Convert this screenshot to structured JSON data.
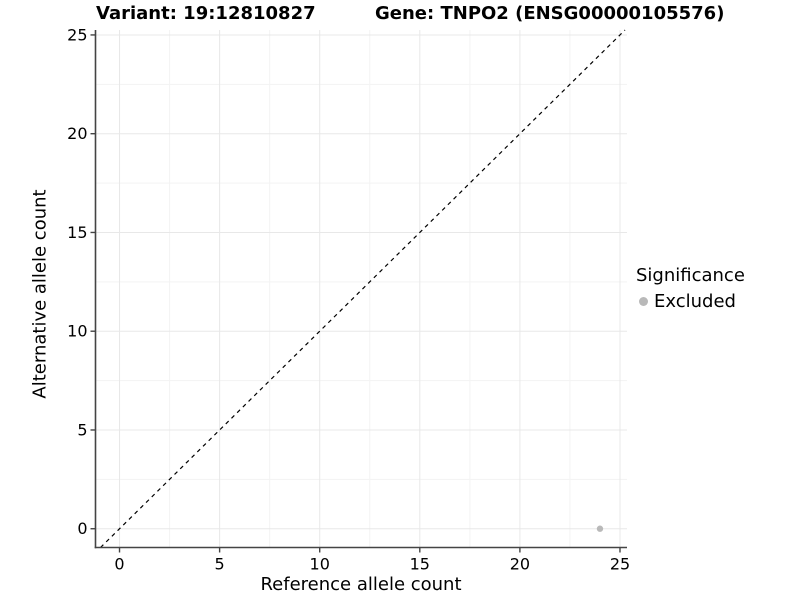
{
  "chart_data": {
    "type": "scatter",
    "titles": {
      "left": "Variant: 19:12810827",
      "right": "Gene: TNPO2 (ENSG00000105576)"
    },
    "xlabel": "Reference allele count",
    "ylabel": "Alternative allele count",
    "xlim": [
      -1.2,
      25.35
    ],
    "ylim": [
      -0.95,
      25.25
    ],
    "x_ticks": [
      0,
      5,
      10,
      15,
      20,
      25
    ],
    "y_ticks": [
      0,
      5,
      10,
      15,
      20,
      25
    ],
    "x_minor_ticks": [
      2.5,
      7.5,
      12.5,
      17.5,
      22.5
    ],
    "y_minor_ticks": [
      2.5,
      7.5,
      12.5,
      17.5,
      22.5
    ],
    "grid": {
      "on": true,
      "major_color": "#e8e8e8",
      "minor_color": "#f3f3f3"
    },
    "axis_color": "#444444",
    "text_color": "#000000",
    "identity_line": {
      "equation": "y = x",
      "style": "dashed",
      "color": "#000000"
    },
    "series": [
      {
        "name": "Excluded",
        "color": "#b9b9b9",
        "points": [
          [
            24,
            0
          ]
        ]
      }
    ],
    "legend": {
      "title": "Significance",
      "position": "right",
      "items": [
        {
          "label": "Excluded",
          "color": "#b9b9b9"
        }
      ]
    }
  }
}
